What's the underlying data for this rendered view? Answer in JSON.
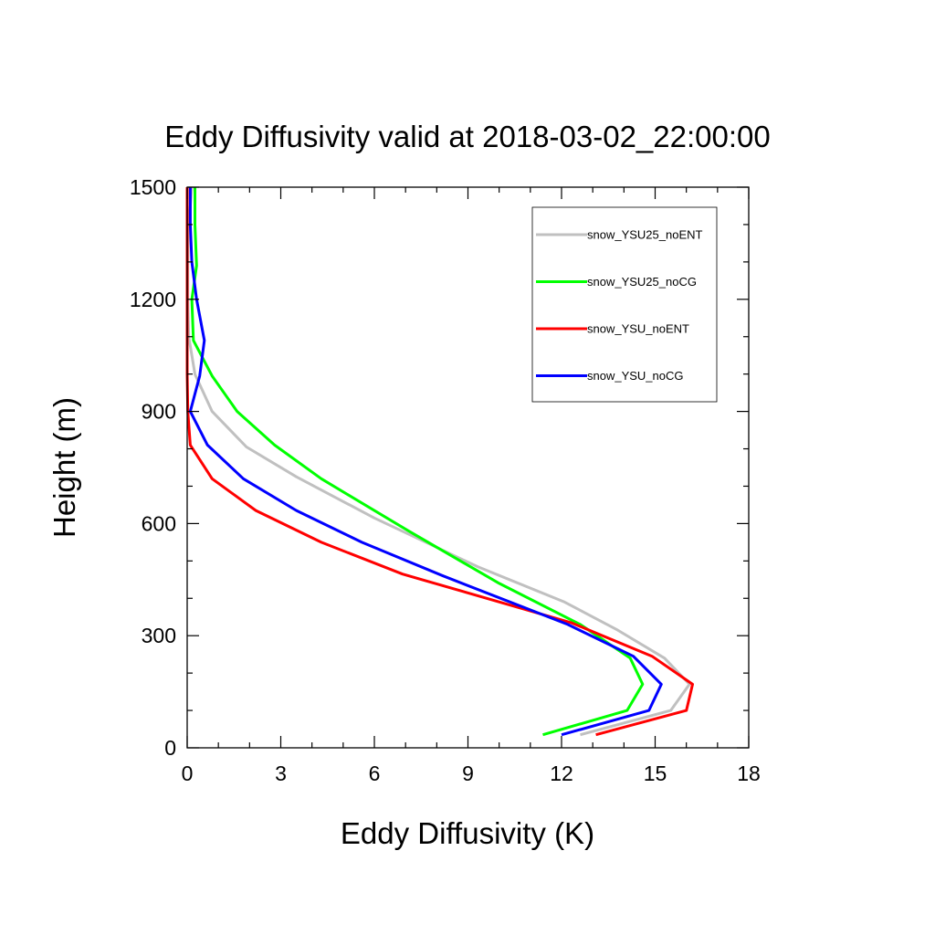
{
  "chart_data": {
    "type": "line",
    "title": "Eddy Diffusivity valid at 2018-03-02_22:00:00",
    "xlabel": "Eddy Diffusivity (K)",
    "ylabel": "Height (m)",
    "xlim": [
      0,
      18
    ],
    "ylim": [
      0,
      1500
    ],
    "xticks": [
      0,
      3,
      6,
      9,
      12,
      15,
      18
    ],
    "yticks": [
      0,
      300,
      600,
      900,
      1200,
      1500
    ],
    "grid": false,
    "legend_position": "top-right",
    "series": [
      {
        "name": "snow_YSU25_noENT",
        "color": "#c0c0c0",
        "points": [
          [
            12.6,
            35
          ],
          [
            15.5,
            100
          ],
          [
            16.1,
            170
          ],
          [
            15.3,
            240
          ],
          [
            13.8,
            315
          ],
          [
            12.1,
            390
          ],
          [
            9.3,
            485
          ],
          [
            6.0,
            615
          ],
          [
            3.5,
            725
          ],
          [
            1.9,
            805
          ],
          [
            0.8,
            900
          ],
          [
            0.25,
            1000
          ],
          [
            0.05,
            1100
          ],
          [
            0.02,
            1200
          ],
          [
            0.02,
            1300
          ],
          [
            0.05,
            1400
          ],
          [
            0.15,
            1500
          ]
        ]
      },
      {
        "name": "snow_YSU25_noCG",
        "color": "#00ff00",
        "points": [
          [
            11.4,
            35
          ],
          [
            14.1,
            100
          ],
          [
            14.6,
            170
          ],
          [
            14.2,
            240
          ],
          [
            12.6,
            330
          ],
          [
            10.0,
            440
          ],
          [
            7.1,
            580
          ],
          [
            4.3,
            720
          ],
          [
            2.8,
            810
          ],
          [
            1.6,
            900
          ],
          [
            0.8,
            995
          ],
          [
            0.2,
            1090
          ],
          [
            0.15,
            1200
          ],
          [
            0.3,
            1290
          ],
          [
            0.25,
            1400
          ],
          [
            0.25,
            1500
          ]
        ]
      },
      {
        "name": "snow_YSU_noENT",
        "color": "#ff0000",
        "points": [
          [
            13.1,
            35
          ],
          [
            16.0,
            100
          ],
          [
            16.2,
            170
          ],
          [
            14.9,
            245
          ],
          [
            12.3,
            335
          ],
          [
            6.9,
            465
          ],
          [
            4.3,
            550
          ],
          [
            2.2,
            635
          ],
          [
            0.8,
            720
          ],
          [
            0.1,
            810
          ],
          [
            0.02,
            900
          ],
          [
            0.0,
            1000
          ],
          [
            0.0,
            1100
          ],
          [
            0.0,
            1200
          ],
          [
            0.0,
            1300
          ],
          [
            0.0,
            1400
          ],
          [
            0.0,
            1500
          ]
        ]
      },
      {
        "name": "snow_YSU_noCG",
        "color": "#0000ff",
        "points": [
          [
            12.0,
            35
          ],
          [
            14.8,
            100
          ],
          [
            15.2,
            170
          ],
          [
            14.3,
            245
          ],
          [
            12.2,
            330
          ],
          [
            8.2,
            460
          ],
          [
            5.6,
            550
          ],
          [
            3.5,
            635
          ],
          [
            1.8,
            720
          ],
          [
            0.65,
            810
          ],
          [
            0.1,
            900
          ],
          [
            0.4,
            995
          ],
          [
            0.55,
            1090
          ],
          [
            0.3,
            1200
          ],
          [
            0.15,
            1300
          ],
          [
            0.1,
            1400
          ],
          [
            0.1,
            1500
          ]
        ]
      }
    ]
  }
}
